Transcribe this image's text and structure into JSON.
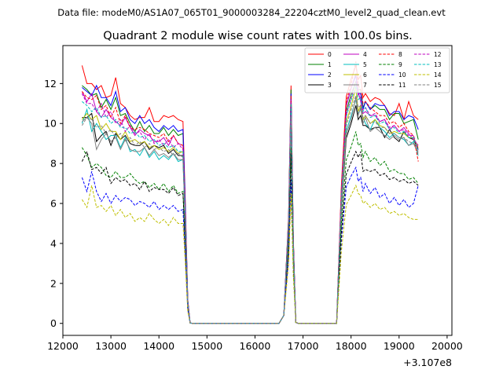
{
  "chart_data": {
    "type": "line",
    "suptitle": "Data file: modeM0/AS1A07_065T01_9000003284_22204cztM0_level2_quad_clean.evt",
    "title": "Quadrant 2 module wise count rates with 100.0s bins.",
    "xlabel": "",
    "ylabel": "",
    "x_offset_label": "+3.107e8",
    "xlim": [
      12000,
      20100
    ],
    "ylim": [
      -0.6,
      13.9
    ],
    "xticks": [
      12000,
      13000,
      14000,
      15000,
      16000,
      17000,
      18000,
      19000,
      20000
    ],
    "yticks": [
      0,
      2,
      4,
      6,
      8,
      10,
      12
    ],
    "grid": false,
    "legend_position": "top-right",
    "x": [
      12400,
      12500,
      12600,
      12700,
      12800,
      12900,
      13000,
      13100,
      13200,
      13300,
      13400,
      13500,
      13600,
      13700,
      13800,
      13900,
      14000,
      14100,
      14200,
      14300,
      14400,
      14500,
      14550,
      14600,
      14650,
      14700,
      14800,
      14900,
      15000,
      15100,
      15200,
      15300,
      15400,
      15500,
      15600,
      15700,
      15800,
      15900,
      16000,
      16100,
      16200,
      16300,
      16400,
      16500,
      16600,
      16700,
      16750,
      16800,
      16850,
      16900,
      16950,
      17000,
      17100,
      17200,
      17300,
      17400,
      17500,
      17600,
      17700,
      17800,
      17900,
      18000,
      18100,
      18150,
      18200,
      18250,
      18300,
      18400,
      18500,
      18600,
      18700,
      18800,
      18900,
      19000,
      19100,
      19200,
      19300,
      19400,
      19500,
      19600,
      19650
    ],
    "series": [
      {
        "name": "0",
        "color": "#ff0000",
        "dash": "solid",
        "base": [
          12.9,
          12.0,
          12.0,
          11.7,
          11.9,
          11.3,
          11.4,
          12.3,
          11.0,
          10.8,
          10.4,
          10.2,
          10.3,
          10.3,
          10.8,
          10.1,
          10.1,
          10.4,
          10.3,
          10.4,
          10.2,
          10.1
        ],
        "peak": 11.9,
        "after": [
          12.6,
          12.9,
          12.2,
          12.4,
          11.3,
          11.5,
          11.1,
          11.3,
          11.2,
          10.9,
          10.5,
          10.4,
          11.0,
          10.2,
          11.1,
          10.4,
          10.2
        ]
      },
      {
        "name": "1",
        "color": "#008000",
        "dash": "solid",
        "base": [
          11.9,
          11.7,
          11.4,
          11.5,
          10.8,
          11.2,
          10.7,
          11.3,
          10.4,
          10.5,
          10.0,
          9.6,
          10.1,
          9.6,
          9.9,
          9.5,
          9.5,
          9.8,
          9.4,
          9.7,
          9.4,
          9.5
        ],
        "peak": 11.7,
        "after": [
          11.8,
          12.1,
          11.7,
          11.7,
          10.8,
          11.1,
          10.7,
          10.9,
          10.7,
          10.7,
          10.2,
          10.5,
          10.5,
          10.0,
          10.1,
          10.2,
          9.2
        ]
      },
      {
        "name": "2",
        "color": "#0000ff",
        "dash": "solid",
        "base": [
          11.8,
          11.6,
          11.4,
          11.9,
          11.3,
          11.3,
          10.9,
          11.6,
          10.6,
          10.8,
          10.2,
          10.0,
          10.4,
          10.0,
          10.2,
          9.8,
          9.6,
          9.9,
          9.7,
          9.9,
          9.6,
          9.7
        ],
        "peak": 11.5,
        "after": [
          12.1,
          12.4,
          11.5,
          11.5,
          10.7,
          11.1,
          10.7,
          11.0,
          10.9,
          10.9,
          10.4,
          10.6,
          10.6,
          10.2,
          10.4,
          10.3,
          9.7
        ]
      },
      {
        "name": "3",
        "color": "#000000",
        "dash": "solid",
        "base": [
          10.3,
          10.3,
          10.5,
          9.1,
          9.4,
          9.6,
          8.9,
          9.5,
          9.2,
          9.4,
          9.0,
          8.9,
          8.9,
          9.1,
          8.7,
          8.9,
          8.8,
          8.9,
          8.5,
          8.7,
          8.4,
          8.4
        ],
        "peak": 10.5,
        "after": [
          10.3,
          10.9,
          10.2,
          10.4,
          9.9,
          9.9,
          9.7,
          9.8,
          9.8,
          9.3,
          9.7,
          9.3,
          9.1,
          9.6,
          9.3,
          9.2,
          8.7
        ]
      },
      {
        "name": "4",
        "color": "#bf00bf",
        "dash": "solid",
        "base": [
          11.6,
          11.1,
          11.5,
          10.6,
          10.3,
          10.7,
          10.3,
          10.1,
          9.9,
          10.3,
          9.8,
          9.4,
          9.7,
          9.5,
          9.4,
          9.1,
          9.1,
          9.3,
          8.9,
          9.4,
          9.0,
          8.9
        ],
        "peak": 11.0,
        "after": [
          12.1,
          12.5,
          11.6,
          11.1,
          10.5,
          10.6,
          10.4,
          10.4,
          10.1,
          10.2,
          9.7,
          9.9,
          9.6,
          9.8,
          9.5,
          9.2,
          8.9
        ]
      },
      {
        "name": "5",
        "color": "#00bfbf",
        "dash": "solid",
        "base": [
          10.0,
          10.7,
          9.6,
          10.0,
          9.6,
          9.2,
          9.4,
          9.4,
          8.8,
          9.3,
          8.6,
          8.7,
          8.4,
          8.8,
          8.3,
          8.6,
          8.2,
          8.4,
          8.2,
          8.5,
          8.1,
          8.2
        ],
        "peak": 10.0,
        "after": [
          10.7,
          11.2,
          10.5,
          10.7,
          10.3,
          10.0,
          9.7,
          10.2,
          9.8,
          9.6,
          9.3,
          9.5,
          9.3,
          9.2,
          8.9,
          9.1,
          8.4
        ]
      },
      {
        "name": "6",
        "color": "#bfbf00",
        "dash": "solid",
        "base": [
          10.2,
          10.5,
          10.2,
          10.4,
          9.7,
          10.0,
          9.6,
          9.6,
          9.2,
          9.6,
          9.1,
          9.2,
          9.0,
          9.1,
          8.8,
          8.9,
          8.7,
          8.8,
          8.6,
          8.8,
          8.5,
          8.6
        ],
        "peak": 10.3,
        "after": [
          11.2,
          11.8,
          10.6,
          10.9,
          10.2,
          10.4,
          10.0,
          10.2,
          9.9,
          9.8,
          9.5,
          9.6,
          9.5,
          9.5,
          9.3,
          9.3,
          8.8
        ]
      },
      {
        "name": "7",
        "color": "#808080",
        "dash": "solid",
        "base": [
          10.1,
          10.3,
          10.0,
          8.7,
          9.2,
          9.5,
          9.1,
          9.3,
          8.7,
          9.2,
          8.7,
          8.6,
          8.6,
          8.8,
          8.4,
          8.7,
          8.4,
          8.5,
          8.3,
          8.5,
          8.2,
          8.2
        ],
        "peak": 10.1,
        "after": [
          10.5,
          11.3,
          10.4,
          10.8,
          10.0,
          10.3,
          9.6,
          9.8,
          9.6,
          9.4,
          9.2,
          9.4,
          9.2,
          9.3,
          8.9,
          9.0,
          8.5
        ]
      },
      {
        "name": "8",
        "color": "#ff0000",
        "dash": "dashed",
        "base": [
          11.6,
          11.3,
          11.2,
          11.4,
          10.7,
          10.9,
          10.3,
          10.8,
          10.0,
          10.4,
          9.8,
          9.7,
          9.8,
          9.7,
          9.5,
          9.4,
          9.3,
          9.5,
          9.1,
          9.4,
          9.0,
          8.9
        ],
        "peak": 11.4,
        "after": [
          12.3,
          13.1,
          11.9,
          11.7,
          11.0,
          11.1,
          10.8,
          10.6,
          10.4,
          10.4,
          10.0,
          10.1,
          9.8,
          10.0,
          9.6,
          9.4,
          8.1
        ]
      },
      {
        "name": "9",
        "color": "#008000",
        "dash": "dashed",
        "base": [
          8.8,
          8.4,
          7.8,
          8.0,
          7.8,
          7.4,
          7.3,
          7.6,
          7.3,
          7.3,
          7.5,
          7.2,
          7.0,
          7.1,
          6.8,
          7.0,
          6.7,
          7.0,
          6.6,
          6.9,
          6.5,
          6.6
        ],
        "peak": 8.8,
        "after": [
          9.1,
          9.6,
          8.9,
          9.0,
          8.3,
          8.6,
          8.1,
          8.3,
          7.9,
          8.1,
          7.6,
          7.7,
          7.5,
          7.5,
          7.2,
          7.3,
          7.0
        ]
      },
      {
        "name": "10",
        "color": "#0000ff",
        "dash": "dashed",
        "base": [
          7.3,
          6.6,
          7.6,
          6.6,
          6.1,
          6.5,
          6.0,
          6.4,
          6.1,
          6.3,
          6.2,
          5.9,
          6.1,
          6.0,
          5.8,
          6.1,
          5.7,
          5.9,
          5.7,
          5.9,
          5.6,
          5.7
        ],
        "peak": 7.2,
        "after": [
          7.6,
          7.8,
          7.1,
          7.3,
          6.6,
          7.0,
          6.5,
          6.8,
          6.3,
          6.5,
          6.0,
          6.3,
          5.9,
          6.2,
          5.8,
          6.0,
          6.9
        ]
      },
      {
        "name": "11",
        "color": "#000000",
        "dash": "dashed",
        "base": [
          8.1,
          8.6,
          7.7,
          7.8,
          7.5,
          7.8,
          7.0,
          7.3,
          7.1,
          7.2,
          6.9,
          7.0,
          6.7,
          7.1,
          6.6,
          6.8,
          6.7,
          6.7,
          6.5,
          6.8,
          6.4,
          6.5
        ],
        "peak": 8.5,
        "after": [
          8.3,
          8.6,
          8.3,
          8.6,
          7.6,
          7.7,
          7.6,
          7.7,
          7.4,
          7.5,
          7.2,
          7.3,
          7.1,
          7.2,
          7.0,
          7.1,
          6.9
        ]
      },
      {
        "name": "12",
        "color": "#bf00bf",
        "dash": "dashed",
        "base": [
          11.5,
          11.0,
          11.0,
          10.6,
          11.0,
          10.3,
          10.6,
          10.0,
          10.2,
          9.6,
          9.9,
          9.5,
          9.6,
          9.2,
          9.5,
          9.0,
          9.2,
          8.9,
          9.2,
          8.8,
          9.0,
          8.7
        ],
        "peak": 11.2,
        "after": [
          11.6,
          12.1,
          11.4,
          11.3,
          10.7,
          10.8,
          10.4,
          10.5,
          10.1,
          10.2,
          9.8,
          9.9,
          9.6,
          9.7,
          9.4,
          9.4,
          8.7
        ]
      },
      {
        "name": "13",
        "color": "#00bfbf",
        "dash": "dashed",
        "base": [
          11.1,
          10.9,
          10.6,
          10.8,
          10.3,
          10.4,
          10.0,
          10.2,
          9.8,
          9.8,
          9.5,
          9.6,
          9.3,
          9.4,
          9.1,
          9.2,
          8.9,
          9.0,
          8.8,
          8.9,
          8.6,
          8.6
        ],
        "peak": 11.0,
        "after": [
          11.5,
          11.9,
          11.2,
          11.3,
          10.6,
          10.8,
          10.3,
          10.4,
          10.0,
          10.1,
          9.7,
          9.8,
          9.5,
          9.6,
          9.3,
          9.3,
          8.6
        ]
      },
      {
        "name": "14",
        "color": "#bfbf00",
        "dash": "dashed",
        "base": [
          6.2,
          5.8,
          6.9,
          5.8,
          5.9,
          5.6,
          5.9,
          5.4,
          5.7,
          5.3,
          5.5,
          5.1,
          5.3,
          5.1,
          5.5,
          5.2,
          5.0,
          5.2,
          4.9,
          5.3,
          5.0,
          5.0
        ],
        "peak": 6.5,
        "after": [
          6.6,
          6.9,
          6.5,
          6.4,
          6.0,
          6.1,
          5.8,
          6.0,
          5.7,
          5.8,
          5.5,
          5.6,
          5.4,
          5.5,
          5.3,
          5.2,
          5.2
        ]
      },
      {
        "name": "15",
        "color": "#808080",
        "dash": "dashed",
        "base": [
          9.9,
          10.3,
          10.2,
          9.8,
          9.9,
          9.5,
          9.7,
          9.3,
          9.5,
          9.1,
          9.3,
          8.9,
          9.1,
          8.8,
          9.0,
          8.7,
          8.8,
          8.6,
          8.7,
          8.4,
          8.5,
          8.3
        ],
        "peak": 10.4,
        "after": [
          11.0,
          11.4,
          10.8,
          10.9,
          10.3,
          10.4,
          10.0,
          10.1,
          9.8,
          9.8,
          9.5,
          9.5,
          9.3,
          9.3,
          9.1,
          9.0,
          8.6
        ]
      }
    ]
  }
}
